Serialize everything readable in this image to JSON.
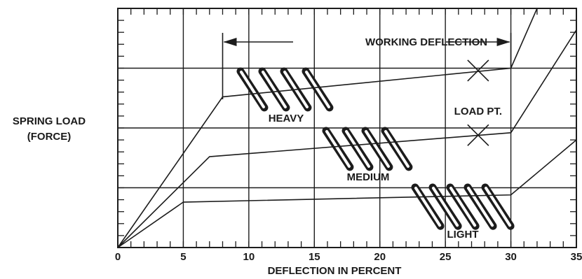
{
  "chart_data": {
    "type": "line",
    "xlabel": "DEFLECTION IN PERCENT",
    "ylabel_lines": [
      "SPRING LOAD",
      "(FORCE)"
    ],
    "xlim": [
      0,
      35
    ],
    "x_ticks": [
      0,
      5,
      10,
      15,
      20,
      25,
      30,
      35
    ],
    "x_tick_labels": [
      "0",
      "5",
      "10",
      "15",
      "20",
      "25",
      "30",
      "35"
    ],
    "ylim": [
      0,
      1
    ],
    "grid": true,
    "series": [
      {
        "name": "HEAVY",
        "x": [
          0,
          8,
          30,
          32
        ],
        "y": [
          0,
          0.63,
          0.75,
          1.0
        ]
      },
      {
        "name": "MEDIUM",
        "x": [
          0,
          7,
          30,
          35
        ],
        "y": [
          0,
          0.38,
          0.48,
          0.91
        ]
      },
      {
        "name": "LIGHT",
        "x": [
          0,
          5,
          30,
          35
        ],
        "y": [
          0,
          0.19,
          0.22,
          0.45
        ]
      }
    ],
    "annotations": {
      "working_deflection": {
        "text": "WORKING DEFLECTION",
        "x_start": 8,
        "x_end": 30
      },
      "load_pt_label": "LOAD PT.",
      "load_points": [
        {
          "x": 27.5,
          "y": 0.74
        },
        {
          "x": 27.5,
          "y": 0.47
        }
      ],
      "spring_labels": {
        "heavy": "HEAVY",
        "medium": "MEDIUM",
        "light": "LIGHT"
      }
    }
  }
}
